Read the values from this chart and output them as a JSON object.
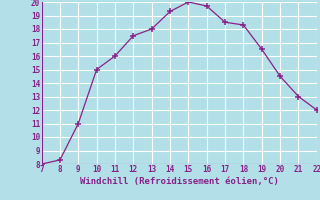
{
  "x": [
    7,
    8,
    9,
    10,
    11,
    12,
    13,
    14,
    15,
    16,
    17,
    18,
    19,
    20,
    21,
    22
  ],
  "y": [
    8.0,
    8.3,
    11.0,
    15.0,
    16.0,
    17.5,
    18.0,
    19.3,
    20.0,
    19.7,
    18.5,
    18.3,
    16.5,
    14.5,
    13.0,
    12.0
  ],
  "xlim": [
    7,
    22
  ],
  "ylim": [
    8,
    20
  ],
  "xticks": [
    7,
    8,
    9,
    10,
    11,
    12,
    13,
    14,
    15,
    16,
    17,
    18,
    19,
    20,
    21,
    22
  ],
  "yticks": [
    8,
    9,
    10,
    11,
    12,
    13,
    14,
    15,
    16,
    17,
    18,
    19,
    20
  ],
  "xlabel": "Windchill (Refroidissement éolien,°C)",
  "line_color": "#882288",
  "marker": "+",
  "bg_color": "#b3e0e8",
  "grid_color": "#ffffff",
  "tick_fontsize": 5.5,
  "xlabel_fontsize": 6.5
}
